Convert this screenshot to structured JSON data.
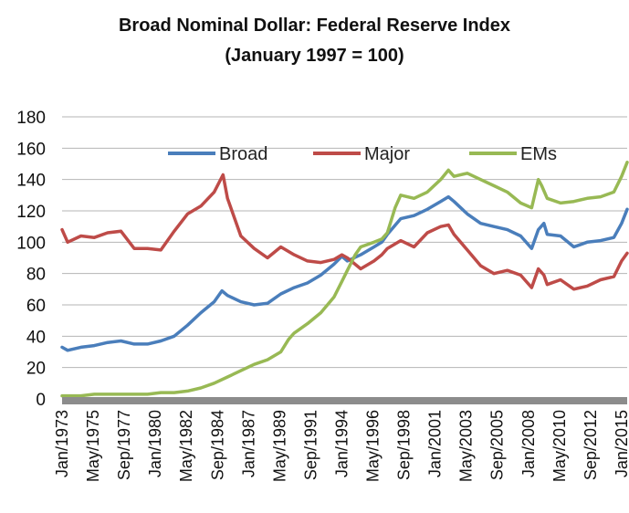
{
  "chart_data": {
    "type": "line",
    "title": "Broad Nominal Dollar: Federal Reserve Index",
    "subtitle": "(January 1997 = 100)",
    "ylim": [
      0,
      180
    ],
    "yticks": [
      0,
      20,
      40,
      60,
      80,
      100,
      120,
      140,
      160,
      180
    ],
    "xlim": [
      "1973-01",
      "2015-06"
    ],
    "xticks": [
      "Jan/1973",
      "May/1975",
      "Sep/1977",
      "Jan/1980",
      "May/1982",
      "Sep/1984",
      "Jan/1987",
      "May/1989",
      "Sep/1991",
      "Jan/1994",
      "May/1996",
      "Sep/1998",
      "Jan/2001",
      "May/2003",
      "Sep/2005",
      "Jan/2008",
      "May/2010",
      "Sep/2012",
      "Jan/2015"
    ],
    "grid": true,
    "legend_position": "top",
    "series": [
      {
        "name": "Broad",
        "color": "#4a7ebb",
        "x": [
          "1973-01",
          "1973-06",
          "1974-06",
          "1975-06",
          "1976-06",
          "1977-06",
          "1978-06",
          "1979-06",
          "1980-06",
          "1981-06",
          "1982-06",
          "1983-06",
          "1984-06",
          "1985-01",
          "1985-06",
          "1986-06",
          "1987-06",
          "1988-06",
          "1989-06",
          "1990-06",
          "1991-06",
          "1992-06",
          "1993-06",
          "1994-01",
          "1994-06",
          "1995-06",
          "1996-06",
          "1997-01",
          "1997-06",
          "1998-06",
          "1999-06",
          "2000-06",
          "2001-06",
          "2002-01",
          "2002-06",
          "2003-06",
          "2004-06",
          "2005-06",
          "2006-06",
          "2007-06",
          "2008-04",
          "2008-10",
          "2009-03",
          "2009-06",
          "2010-06",
          "2011-06",
          "2012-06",
          "2013-06",
          "2014-06",
          "2015-01",
          "2015-06"
        ],
        "values": [
          33,
          31,
          33,
          34,
          36,
          37,
          35,
          35,
          37,
          40,
          47,
          55,
          62,
          69,
          66,
          62,
          60,
          61,
          67,
          71,
          74,
          79,
          86,
          91,
          88,
          92,
          97,
          100,
          105,
          115,
          117,
          121,
          126,
          129,
          126,
          118,
          112,
          110,
          108,
          104,
          96,
          108,
          112,
          105,
          104,
          97,
          100,
          101,
          103,
          112,
          121
        ]
      },
      {
        "name": "Major",
        "color": "#be4b48",
        "x": [
          "1973-01",
          "1973-06",
          "1974-06",
          "1975-06",
          "1976-06",
          "1977-06",
          "1978-06",
          "1979-06",
          "1980-06",
          "1981-06",
          "1982-06",
          "1983-06",
          "1984-06",
          "1985-02",
          "1985-06",
          "1986-06",
          "1987-06",
          "1988-06",
          "1989-06",
          "1990-06",
          "1991-06",
          "1992-06",
          "1993-06",
          "1994-01",
          "1994-06",
          "1995-06",
          "1996-06",
          "1997-01",
          "1997-06",
          "1998-06",
          "1999-06",
          "2000-06",
          "2001-06",
          "2002-01",
          "2002-06",
          "2003-06",
          "2004-06",
          "2005-06",
          "2006-06",
          "2007-06",
          "2008-04",
          "2008-10",
          "2009-03",
          "2009-06",
          "2010-06",
          "2011-06",
          "2012-06",
          "2013-06",
          "2014-06",
          "2015-01",
          "2015-06"
        ],
        "values": [
          108,
          100,
          104,
          103,
          106,
          107,
          96,
          96,
          95,
          107,
          118,
          123,
          132,
          143,
          128,
          104,
          96,
          90,
          97,
          92,
          88,
          87,
          89,
          92,
          90,
          83,
          88,
          92,
          96,
          101,
          97,
          106,
          110,
          111,
          105,
          95,
          85,
          80,
          82,
          79,
          71,
          83,
          79,
          73,
          76,
          70,
          72,
          76,
          78,
          88,
          93
        ]
      },
      {
        "name": "EMs",
        "color": "#98b954",
        "x": [
          "1973-01",
          "1974-06",
          "1975-06",
          "1976-06",
          "1977-06",
          "1978-06",
          "1979-06",
          "1980-06",
          "1981-06",
          "1982-06",
          "1983-06",
          "1984-06",
          "1985-06",
          "1986-06",
          "1987-06",
          "1988-06",
          "1989-06",
          "1990-01",
          "1990-06",
          "1991-06",
          "1992-06",
          "1993-06",
          "1994-01",
          "1994-06",
          "1995-01",
          "1995-06",
          "1996-06",
          "1997-01",
          "1997-06",
          "1998-01",
          "1998-06",
          "1999-06",
          "2000-06",
          "2001-06",
          "2002-01",
          "2002-06",
          "2003-06",
          "2004-06",
          "2005-06",
          "2006-06",
          "2007-06",
          "2008-04",
          "2008-10",
          "2009-01",
          "2009-06",
          "2010-06",
          "2011-06",
          "2012-06",
          "2013-06",
          "2014-06",
          "2015-01",
          "2015-06"
        ],
        "values": [
          2,
          2,
          3,
          3,
          3,
          3,
          3,
          4,
          4,
          5,
          7,
          10,
          14,
          18,
          22,
          25,
          30,
          38,
          42,
          48,
          55,
          65,
          75,
          82,
          92,
          97,
          100,
          102,
          106,
          122,
          130,
          128,
          132,
          140,
          146,
          142,
          144,
          140,
          136,
          132,
          125,
          122,
          140,
          136,
          128,
          125,
          126,
          128,
          129,
          132,
          142,
          151
        ]
      }
    ]
  }
}
